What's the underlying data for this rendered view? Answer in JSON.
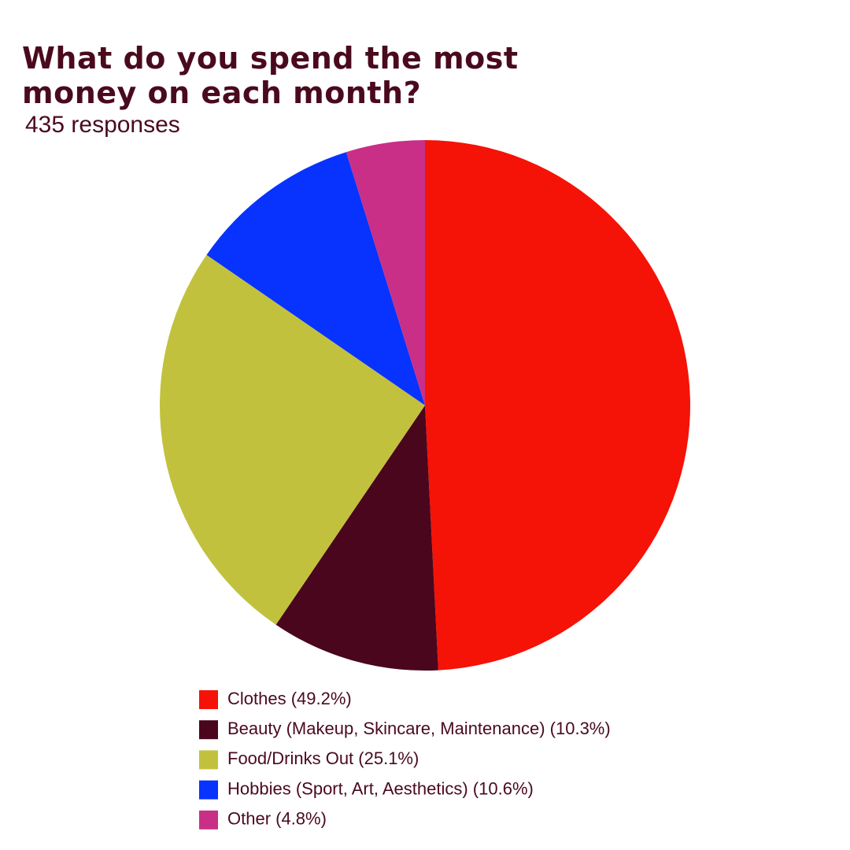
{
  "chart_data": {
    "type": "pie",
    "title": "What do you spend the most money on each month?",
    "subtitle": "435 responses",
    "categories": [
      "Clothes (49.2%)",
      "Beauty (Makeup, Skincare, Maintenance) (10.3%)",
      "Food/Drinks Out (25.1%)",
      "Hobbies (Sport, Art, Aesthetics) (10.6%)",
      "Other (4.8%)"
    ],
    "values": [
      49.2,
      10.3,
      25.1,
      10.6,
      4.8
    ],
    "colors": [
      "#f51207",
      "#4a061c",
      "#c2c13e",
      "#0832fd",
      "#c92f86"
    ]
  }
}
